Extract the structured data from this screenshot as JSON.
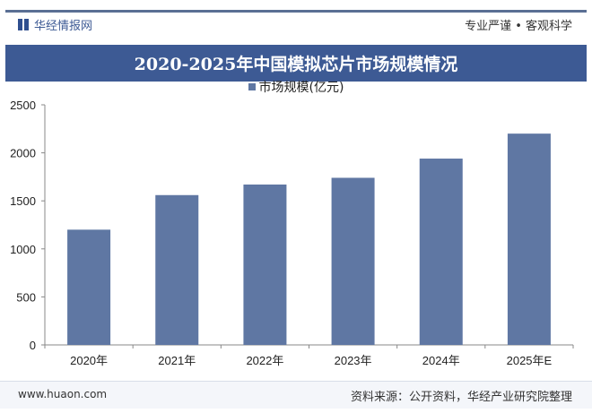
{
  "header": {
    "brand": "华经情报网",
    "slogan": "专业严谨 • 客观科学"
  },
  "title": "2020-2025年中国模拟芯片市场规模情况",
  "footer": {
    "url": "www.huaon.com",
    "source": "资料来源：公开资料，华经产业研究院整理"
  },
  "chart_data": {
    "type": "bar",
    "title": "2020-2025年中国模拟芯片市场规模情况",
    "categories": [
      "2020年",
      "2021年",
      "2022年",
      "2023年",
      "2024年",
      "2025年E"
    ],
    "series": [
      {
        "name": "市场规模(亿元)",
        "values": [
          1200,
          1560,
          1670,
          1740,
          1940,
          2200
        ]
      }
    ],
    "ylim": [
      0,
      2500
    ],
    "yticks": [
      "0",
      "500",
      "1000",
      "1500",
      "2000",
      "2500"
    ],
    "legend": "top-center",
    "grid": false,
    "bar_color": "#5f77a3"
  }
}
